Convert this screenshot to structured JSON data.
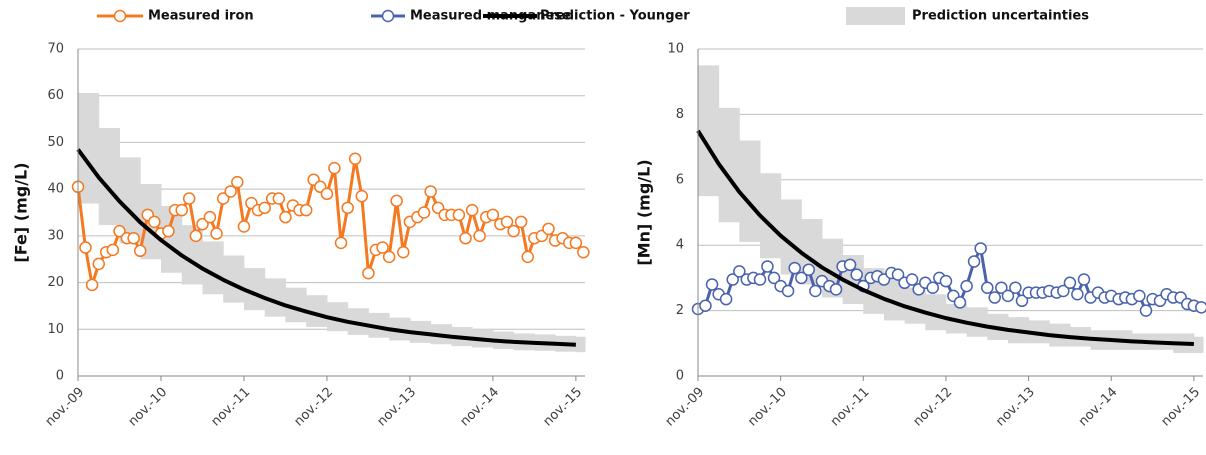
{
  "chart_data": [
    {
      "type": "line",
      "ylabel": "[Fe] (mg/L)",
      "xlim": [
        2009.83,
        2015.94
      ],
      "xticks": [
        {
          "value": 2009.83,
          "label": "nov.-09"
        },
        {
          "value": 2010.83,
          "label": "nov.-10"
        },
        {
          "value": 2011.83,
          "label": "nov.-11"
        },
        {
          "value": 2012.83,
          "label": "nov.-12"
        },
        {
          "value": 2013.83,
          "label": "nov.-13"
        },
        {
          "value": 2014.83,
          "label": "nov.-14"
        },
        {
          "value": 2015.83,
          "label": "nov.-15"
        }
      ],
      "ylim": [
        0,
        70
      ],
      "yticks": [
        0,
        10,
        20,
        30,
        40,
        50,
        60,
        70
      ],
      "grid": true,
      "series": [
        {
          "name": "Measured iron",
          "color": "#f47920",
          "marker": "circle",
          "x": [
            2009.83,
            2009.92,
            2010.0,
            2010.08,
            2010.17,
            2010.25,
            2010.33,
            2010.42,
            2010.5,
            2010.58,
            2010.67,
            2010.75,
            2010.83,
            2010.92,
            2011.0,
            2011.08,
            2011.17,
            2011.25,
            2011.33,
            2011.42,
            2011.5,
            2011.58,
            2011.67,
            2011.75,
            2011.83,
            2011.92,
            2012.0,
            2012.08,
            2012.17,
            2012.25,
            2012.33,
            2012.42,
            2012.5,
            2012.58,
            2012.67,
            2012.75,
            2012.83,
            2012.92,
            2013.0,
            2013.08,
            2013.17,
            2013.25,
            2013.33,
            2013.42,
            2013.5,
            2013.58,
            2013.67,
            2013.75,
            2013.83,
            2013.92,
            2014.0,
            2014.08,
            2014.17,
            2014.25,
            2014.33,
            2014.42,
            2014.5,
            2014.58,
            2014.67,
            2014.75,
            2014.83,
            2014.92,
            2015.0,
            2015.08,
            2015.17,
            2015.25,
            2015.33,
            2015.42,
            2015.5,
            2015.58,
            2015.67,
            2015.75,
            2015.83,
            2015.92
          ],
          "values": [
            40.5,
            27.5,
            19.5,
            24,
            26.5,
            27,
            31,
            29.5,
            29.5,
            26.8,
            34.5,
            33,
            30.5,
            31,
            35.5,
            35.5,
            38,
            30,
            32.5,
            34,
            30.5,
            38,
            39.5,
            41.5,
            32,
            37,
            35.5,
            36,
            38,
            38,
            34,
            36.5,
            35.5,
            35.5,
            42,
            40.5,
            39,
            44.5,
            28.5,
            36,
            46.5,
            38.5,
            22,
            27,
            27.5,
            25.5,
            37.5,
            26.5,
            33,
            34,
            35,
            39.5,
            36,
            34.5,
            34.5,
            34.5,
            29.5,
            35.5,
            30,
            34,
            34.5,
            32.5,
            33,
            31,
            33,
            25.5,
            29.5,
            30,
            31.5,
            29,
            29.5,
            28.5,
            28.5,
            26.5
          ]
        },
        {
          "name": "Prediction - Younger",
          "color": "#000000",
          "x": [
            2009.83,
            2010.08,
            2010.33,
            2010.58,
            2010.83,
            2011.08,
            2011.33,
            2011.58,
            2011.83,
            2012.08,
            2012.33,
            2012.58,
            2012.83,
            2013.08,
            2013.33,
            2013.58,
            2013.83,
            2014.08,
            2014.33,
            2014.58,
            2014.83,
            2015.08,
            2015.33,
            2015.58,
            2015.83
          ],
          "values": [
            48.5,
            42.5,
            37.4,
            32.9,
            29.1,
            25.8,
            23.0,
            20.6,
            18.5,
            16.7,
            15.1,
            13.8,
            12.6,
            11.6,
            10.8,
            10.0,
            9.4,
            8.9,
            8.4,
            8.0,
            7.6,
            7.3,
            7.1,
            6.9,
            6.7
          ]
        },
        {
          "name": "Prediction uncertainties",
          "color": "#d9d9d9",
          "x": [
            2009.83,
            2010.08,
            2010.33,
            2010.58,
            2010.83,
            2011.08,
            2011.33,
            2011.58,
            2011.83,
            2012.08,
            2012.33,
            2012.58,
            2012.83,
            2013.08,
            2013.33,
            2013.58,
            2013.83,
            2014.08,
            2014.33,
            2014.58,
            2014.83,
            2015.08,
            2015.33,
            2015.58,
            2015.83
          ],
          "low": [
            36.9,
            32.3,
            28.4,
            25.0,
            22.1,
            19.6,
            17.5,
            15.7,
            14.1,
            12.7,
            11.5,
            10.5,
            9.6,
            8.8,
            8.2,
            7.6,
            7.1,
            6.8,
            6.4,
            6.1,
            5.8,
            5.5,
            5.4,
            5.2,
            5.1
          ],
          "high": [
            60.6,
            53.1,
            46.8,
            41.1,
            36.4,
            32.3,
            28.8,
            25.8,
            23.1,
            20.9,
            18.9,
            17.3,
            15.8,
            14.5,
            13.5,
            12.5,
            11.8,
            11.1,
            10.5,
            10.0,
            9.5,
            9.1,
            8.9,
            8.6,
            8.4
          ]
        }
      ]
    },
    {
      "type": "line",
      "ylabel": "[Mn] (mg/L)",
      "xlim": [
        2009.83,
        2015.94
      ],
      "xticks": [
        {
          "value": 2009.83,
          "label": "nov.-09"
        },
        {
          "value": 2010.83,
          "label": "nov.-10"
        },
        {
          "value": 2011.83,
          "label": "nov.-11"
        },
        {
          "value": 2012.83,
          "label": "nov.-12"
        },
        {
          "value": 2013.83,
          "label": "nov.-13"
        },
        {
          "value": 2014.83,
          "label": "nov.-14"
        },
        {
          "value": 2015.83,
          "label": "nov.-15"
        }
      ],
      "ylim": [
        0,
        10
      ],
      "yticks": [
        0,
        2,
        4,
        6,
        8,
        10
      ],
      "grid": true,
      "series": [
        {
          "name": "Measured manganese",
          "color": "#4a62ad",
          "marker": "circle",
          "x": [
            2009.83,
            2009.92,
            2010.0,
            2010.08,
            2010.17,
            2010.25,
            2010.33,
            2010.42,
            2010.5,
            2010.58,
            2010.67,
            2010.75,
            2010.83,
            2010.92,
            2011.0,
            2011.08,
            2011.17,
            2011.25,
            2011.33,
            2011.42,
            2011.5,
            2011.58,
            2011.67,
            2011.75,
            2011.83,
            2011.92,
            2012.0,
            2012.08,
            2012.17,
            2012.25,
            2012.33,
            2012.42,
            2012.5,
            2012.58,
            2012.67,
            2012.75,
            2012.83,
            2012.92,
            2013.0,
            2013.08,
            2013.17,
            2013.25,
            2013.33,
            2013.42,
            2013.5,
            2013.58,
            2013.67,
            2013.75,
            2013.83,
            2013.92,
            2014.0,
            2014.08,
            2014.17,
            2014.25,
            2014.33,
            2014.42,
            2014.5,
            2014.58,
            2014.67,
            2014.75,
            2014.83,
            2014.92,
            2015.0,
            2015.08,
            2015.17,
            2015.25,
            2015.33,
            2015.42,
            2015.5,
            2015.58,
            2015.67,
            2015.75,
            2015.83,
            2015.92
          ],
          "values": [
            2.05,
            2.15,
            2.8,
            2.5,
            2.35,
            2.95,
            3.2,
            2.95,
            3.0,
            2.95,
            3.35,
            3.0,
            2.75,
            2.6,
            3.3,
            3.0,
            3.25,
            2.6,
            2.9,
            2.75,
            2.65,
            3.35,
            3.4,
            3.1,
            2.75,
            3.0,
            3.05,
            2.95,
            3.15,
            3.1,
            2.85,
            2.95,
            2.65,
            2.85,
            2.7,
            3.0,
            2.9,
            2.45,
            2.25,
            2.75,
            3.5,
            3.9,
            2.7,
            2.4,
            2.7,
            2.45,
            2.7,
            2.3,
            2.55,
            2.55,
            2.55,
            2.6,
            2.55,
            2.6,
            2.85,
            2.5,
            2.95,
            2.4,
            2.55,
            2.4,
            2.45,
            2.35,
            2.4,
            2.35,
            2.45,
            2.0,
            2.35,
            2.3,
            2.5,
            2.4,
            2.4,
            2.2,
            2.15,
            2.1
          ]
        },
        {
          "color": "#000000",
          "x": [
            2009.83,
            2010.08,
            2010.33,
            2010.58,
            2010.83,
            2011.08,
            2011.33,
            2011.58,
            2011.83,
            2012.08,
            2012.33,
            2012.58,
            2012.83,
            2013.08,
            2013.33,
            2013.58,
            2013.83,
            2014.08,
            2014.33,
            2014.58,
            2014.83,
            2015.08,
            2015.33,
            2015.58,
            2015.83
          ],
          "values": [
            7.5,
            6.49,
            5.63,
            4.91,
            4.29,
            3.77,
            3.32,
            2.95,
            2.63,
            2.36,
            2.13,
            1.94,
            1.77,
            1.63,
            1.51,
            1.41,
            1.33,
            1.25,
            1.19,
            1.14,
            1.1,
            1.06,
            1.03,
            1.0,
            0.98
          ]
        },
        {
          "color": "#d9d9d9",
          "x": [
            2009.83,
            2010.08,
            2010.33,
            2010.58,
            2010.83,
            2011.08,
            2011.33,
            2011.58,
            2011.83,
            2012.08,
            2012.33,
            2012.58,
            2012.83,
            2013.08,
            2013.33,
            2013.58,
            2013.83,
            2014.08,
            2014.33,
            2014.58,
            2014.83,
            2015.08,
            2015.33,
            2015.58,
            2015.83
          ],
          "low": [
            5.5,
            4.7,
            4.1,
            3.6,
            3.1,
            2.8,
            2.4,
            2.2,
            1.9,
            1.7,
            1.6,
            1.4,
            1.3,
            1.2,
            1.1,
            1.0,
            1.0,
            0.9,
            0.9,
            0.8,
            0.8,
            0.8,
            0.8,
            0.7,
            0.7
          ],
          "high": [
            9.5,
            8.2,
            7.2,
            6.2,
            5.4,
            4.8,
            4.2,
            3.7,
            3.3,
            3.0,
            2.7,
            2.5,
            2.2,
            2.1,
            1.9,
            1.8,
            1.7,
            1.6,
            1.5,
            1.4,
            1.4,
            1.3,
            1.3,
            1.3,
            1.2
          ]
        }
      ]
    }
  ]
}
